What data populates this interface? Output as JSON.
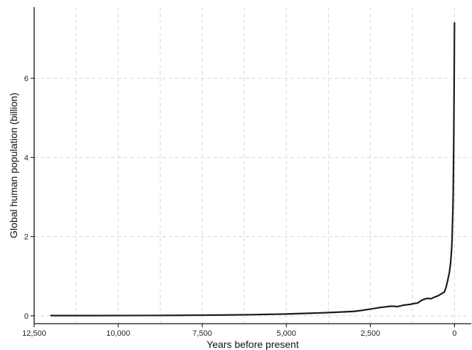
{
  "chart_data": {
    "type": "line",
    "title": "",
    "xlabel": "Years before present",
    "ylabel": "Global human population (billion)",
    "x_reversed": true,
    "xlim": [
      12500,
      -500
    ],
    "ylim": [
      -0.2,
      7.8
    ],
    "grid": true,
    "legend": "none",
    "x_ticks": [
      12500,
      10000,
      7500,
      5000,
      2500,
      0
    ],
    "x_tick_labels": [
      "12,500",
      "10,000",
      "7,500",
      "5,000",
      "2,500",
      "0"
    ],
    "y_ticks": [
      0,
      2,
      4,
      6
    ],
    "y_tick_labels": [
      "0",
      "2",
      "4",
      "6"
    ],
    "line_color": "#1a1a1a",
    "series": [
      {
        "x": [
          12000,
          11000,
          10000,
          9000,
          8000,
          7000,
          6000,
          5000,
          4500,
          4000,
          3500,
          3000,
          2800,
          2500,
          2200,
          2000,
          1900,
          1800,
          1700,
          1600,
          1500,
          1400,
          1300,
          1200,
          1100,
          1000,
          900,
          800,
          700,
          600,
          500,
          400,
          300,
          250,
          200,
          150,
          120,
          100,
          80,
          70,
          60,
          50,
          40,
          30,
          20,
          10,
          5,
          0
        ],
        "y": [
          0.004,
          0.005,
          0.006,
          0.008,
          0.012,
          0.018,
          0.028,
          0.045,
          0.058,
          0.072,
          0.09,
          0.11,
          0.13,
          0.17,
          0.21,
          0.23,
          0.24,
          0.24,
          0.23,
          0.25,
          0.27,
          0.28,
          0.29,
          0.31,
          0.32,
          0.38,
          0.42,
          0.44,
          0.43,
          0.47,
          0.5,
          0.55,
          0.6,
          0.72,
          0.9,
          1.1,
          1.3,
          1.5,
          1.75,
          2.0,
          2.3,
          2.6,
          3.0,
          3.7,
          4.6,
          5.8,
          6.6,
          7.4
        ]
      }
    ]
  }
}
